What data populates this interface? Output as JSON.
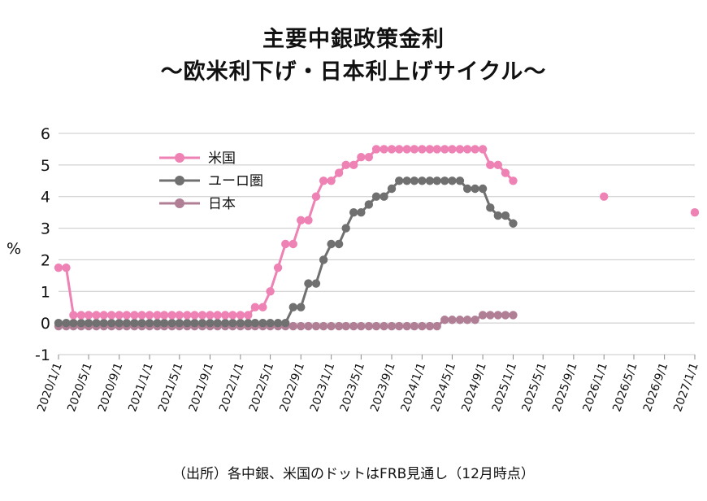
{
  "chart_data": {
    "type": "line",
    "title": "主要中銀政策金利",
    "subtitle": "～欧米利下げ・日本利上げサイクル～",
    "ylabel": "%",
    "ylim": [
      -1,
      6
    ],
    "yticks": [
      -1,
      0,
      1,
      2,
      3,
      4,
      5,
      6
    ],
    "x_tick_labels": [
      "2020/1/1",
      "2020/5/1",
      "2020/9/1",
      "2021/1/1",
      "2021/5/1",
      "2021/9/1",
      "2022/1/1",
      "2022/5/1",
      "2022/9/1",
      "2023/1/1",
      "2023/5/1",
      "2023/9/1",
      "2024/1/1",
      "2024/5/1",
      "2024/9/1",
      "2025/1/1",
      "2025/5/1",
      "2025/9/1",
      "2026/1/1",
      "2026/5/1",
      "2026/9/1",
      "2027/1/1"
    ],
    "x_range": [
      "2020/1/1",
      "2027/1/1"
    ],
    "grid": true,
    "legend_position": "top-left",
    "source": "（出所）各中銀、米国のドットはFRB見通し（12月時点）",
    "series": [
      {
        "name": "米国",
        "color": "#EE82B4",
        "x": [
          "2020/1/1",
          "2020/2/1",
          "2020/3/1",
          "2020/4/1",
          "2020/5/1",
          "2020/6/1",
          "2020/7/1",
          "2020/8/1",
          "2020/9/1",
          "2020/10/1",
          "2020/11/1",
          "2020/12/1",
          "2021/1/1",
          "2021/2/1",
          "2021/3/1",
          "2021/4/1",
          "2021/5/1",
          "2021/6/1",
          "2021/7/1",
          "2021/8/1",
          "2021/9/1",
          "2021/10/1",
          "2021/11/1",
          "2021/12/1",
          "2022/1/1",
          "2022/2/1",
          "2022/3/1",
          "2022/4/1",
          "2022/5/1",
          "2022/6/1",
          "2022/7/1",
          "2022/8/1",
          "2022/9/1",
          "2022/10/1",
          "2022/11/1",
          "2022/12/1",
          "2023/1/1",
          "2023/2/1",
          "2023/3/1",
          "2023/4/1",
          "2023/5/1",
          "2023/6/1",
          "2023/7/1",
          "2023/8/1",
          "2023/9/1",
          "2023/10/1",
          "2023/11/1",
          "2023/12/1",
          "2024/1/1",
          "2024/2/1",
          "2024/3/1",
          "2024/4/1",
          "2024/5/1",
          "2024/6/1",
          "2024/7/1",
          "2024/8/1",
          "2024/9/1",
          "2024/10/1",
          "2024/11/1",
          "2024/12/1",
          "2025/1/1"
        ],
        "values": [
          1.75,
          1.75,
          0.25,
          0.25,
          0.25,
          0.25,
          0.25,
          0.25,
          0.25,
          0.25,
          0.25,
          0.25,
          0.25,
          0.25,
          0.25,
          0.25,
          0.25,
          0.25,
          0.25,
          0.25,
          0.25,
          0.25,
          0.25,
          0.25,
          0.25,
          0.25,
          0.5,
          0.5,
          1.0,
          1.75,
          2.5,
          2.5,
          3.25,
          3.25,
          4.0,
          4.5,
          4.5,
          4.75,
          5.0,
          5.0,
          5.25,
          5.25,
          5.5,
          5.5,
          5.5,
          5.5,
          5.5,
          5.5,
          5.5,
          5.5,
          5.5,
          5.5,
          5.5,
          5.5,
          5.5,
          5.5,
          5.5,
          5.0,
          5.0,
          4.75,
          4.5
        ]
      },
      {
        "name": "米国ドット",
        "color": "#EE82B4",
        "x": [
          "2026/1/1",
          "2027/1/1"
        ],
        "values": [
          4.0,
          3.5
        ]
      },
      {
        "name": "ユーロ圏",
        "color": "#707070",
        "x": [
          "2020/1/1",
          "2020/2/1",
          "2020/3/1",
          "2020/4/1",
          "2020/5/1",
          "2020/6/1",
          "2020/7/1",
          "2020/8/1",
          "2020/9/1",
          "2020/10/1",
          "2020/11/1",
          "2020/12/1",
          "2021/1/1",
          "2021/2/1",
          "2021/3/1",
          "2021/4/1",
          "2021/5/1",
          "2021/6/1",
          "2021/7/1",
          "2021/8/1",
          "2021/9/1",
          "2021/10/1",
          "2021/11/1",
          "2021/12/1",
          "2022/1/1",
          "2022/2/1",
          "2022/3/1",
          "2022/4/1",
          "2022/5/1",
          "2022/6/1",
          "2022/7/1",
          "2022/8/1",
          "2022/9/1",
          "2022/10/1",
          "2022/11/1",
          "2022/12/1",
          "2023/1/1",
          "2023/2/1",
          "2023/3/1",
          "2023/4/1",
          "2023/5/1",
          "2023/6/1",
          "2023/7/1",
          "2023/8/1",
          "2023/9/1",
          "2023/10/1",
          "2023/11/1",
          "2023/12/1",
          "2024/1/1",
          "2024/2/1",
          "2024/3/1",
          "2024/4/1",
          "2024/5/1",
          "2024/6/1",
          "2024/7/1",
          "2024/8/1",
          "2024/9/1",
          "2024/10/1",
          "2024/11/1",
          "2024/12/1",
          "2025/1/1"
        ],
        "values": [
          0,
          0,
          0,
          0,
          0,
          0,
          0,
          0,
          0,
          0,
          0,
          0,
          0,
          0,
          0,
          0,
          0,
          0,
          0,
          0,
          0,
          0,
          0,
          0,
          0,
          0,
          0,
          0,
          0,
          0,
          0,
          0.5,
          0.5,
          1.25,
          1.25,
          2.0,
          2.5,
          2.5,
          3.0,
          3.5,
          3.5,
          3.75,
          4.0,
          4.0,
          4.25,
          4.5,
          4.5,
          4.5,
          4.5,
          4.5,
          4.5,
          4.5,
          4.5,
          4.5,
          4.25,
          4.25,
          4.25,
          3.65,
          3.4,
          3.4,
          3.15
        ]
      },
      {
        "name": "日本",
        "color": "#B07F96",
        "x": [
          "2020/1/1",
          "2020/2/1",
          "2020/3/1",
          "2020/4/1",
          "2020/5/1",
          "2020/6/1",
          "2020/7/1",
          "2020/8/1",
          "2020/9/1",
          "2020/10/1",
          "2020/11/1",
          "2020/12/1",
          "2021/1/1",
          "2021/2/1",
          "2021/3/1",
          "2021/4/1",
          "2021/5/1",
          "2021/6/1",
          "2021/7/1",
          "2021/8/1",
          "2021/9/1",
          "2021/10/1",
          "2021/11/1",
          "2021/12/1",
          "2022/1/1",
          "2022/2/1",
          "2022/3/1",
          "2022/4/1",
          "2022/5/1",
          "2022/6/1",
          "2022/7/1",
          "2022/8/1",
          "2022/9/1",
          "2022/10/1",
          "2022/11/1",
          "2022/12/1",
          "2023/1/1",
          "2023/2/1",
          "2023/3/1",
          "2023/4/1",
          "2023/5/1",
          "2023/6/1",
          "2023/7/1",
          "2023/8/1",
          "2023/9/1",
          "2023/10/1",
          "2023/11/1",
          "2023/12/1",
          "2024/1/1",
          "2024/2/1",
          "2024/3/1",
          "2024/4/1",
          "2024/5/1",
          "2024/6/1",
          "2024/7/1",
          "2024/8/1",
          "2024/9/1",
          "2024/10/1",
          "2024/11/1",
          "2024/12/1",
          "2025/1/1"
        ],
        "values": [
          -0.1,
          -0.1,
          -0.1,
          -0.1,
          -0.1,
          -0.1,
          -0.1,
          -0.1,
          -0.1,
          -0.1,
          -0.1,
          -0.1,
          -0.1,
          -0.1,
          -0.1,
          -0.1,
          -0.1,
          -0.1,
          -0.1,
          -0.1,
          -0.1,
          -0.1,
          -0.1,
          -0.1,
          -0.1,
          -0.1,
          -0.1,
          -0.1,
          -0.1,
          -0.1,
          -0.1,
          -0.1,
          -0.1,
          -0.1,
          -0.1,
          -0.1,
          -0.1,
          -0.1,
          -0.1,
          -0.1,
          -0.1,
          -0.1,
          -0.1,
          -0.1,
          -0.1,
          -0.1,
          -0.1,
          -0.1,
          -0.1,
          -0.1,
          -0.1,
          0.1,
          0.1,
          0.1,
          0.1,
          0.1,
          0.25,
          0.25,
          0.25,
          0.25,
          0.25
        ]
      }
    ],
    "legend": [
      {
        "label": "米国",
        "color": "#EE82B4"
      },
      {
        "label": "ユーロ圏",
        "color": "#707070"
      },
      {
        "label": "日本",
        "color": "#B07F96"
      }
    ]
  }
}
